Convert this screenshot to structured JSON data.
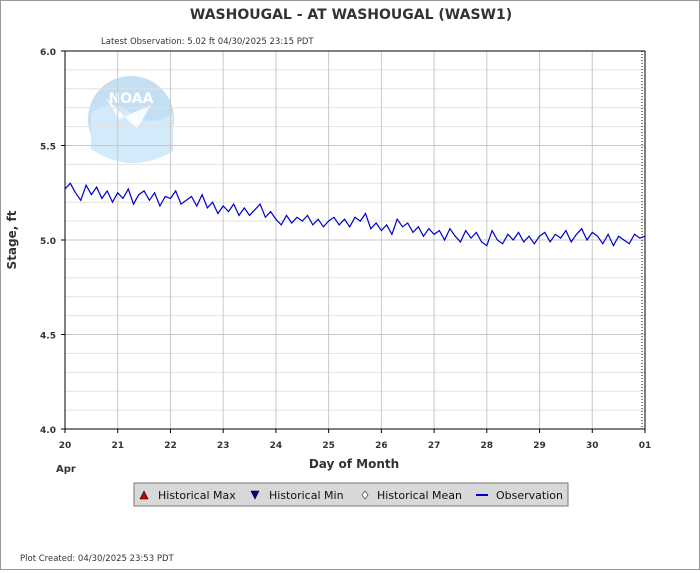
{
  "title": "WASHOUGAL - AT WASHOUGAL  (WASW1)",
  "latest_observation": "Latest Observation: 5.02 ft 04/30/2025 23:15 PDT",
  "plot_created": "Plot Created: 04/30/2025 23:53 PDT",
  "colors": {
    "observation": "#0000cc",
    "hist_max": "#cc0000",
    "hist_min": "#000099",
    "legend_bg": "#d8d8d8",
    "grid_minor": "#e2e2e2",
    "grid_major": "#c8c8c8"
  },
  "legend": [
    {
      "label": "Historical Max",
      "marker": "triangle-up"
    },
    {
      "label": "Historical Min",
      "marker": "triangle-down"
    },
    {
      "label": "Historical Mean",
      "marker": "diamond"
    },
    {
      "label": "Observation",
      "marker": "line"
    }
  ],
  "chart_data": {
    "type": "line",
    "title": "WASHOUGAL - AT WASHOUGAL  (WASW1)",
    "xlabel": "Day of Month",
    "ylabel": "Stage, ft",
    "month_label": "Apr",
    "xlim": [
      20,
      31
    ],
    "ylim": [
      4.0,
      6.0
    ],
    "x_ticks": [
      "20",
      "21",
      "22",
      "23",
      "24",
      "25",
      "26",
      "27",
      "28",
      "29",
      "30",
      "01"
    ],
    "y_ticks": [
      "4.0",
      "4.5",
      "5.0",
      "5.5",
      "6.0"
    ],
    "legend_position": "bottom",
    "grid": true,
    "series": [
      {
        "name": "Observation",
        "x": [
          20.0,
          20.1,
          20.2,
          20.3,
          20.4,
          20.5,
          20.6,
          20.7,
          20.8,
          20.9,
          21.0,
          21.1,
          21.2,
          21.3,
          21.4,
          21.5,
          21.6,
          21.7,
          21.8,
          21.9,
          22.0,
          22.1,
          22.2,
          22.3,
          22.4,
          22.5,
          22.6,
          22.7,
          22.8,
          22.9,
          23.0,
          23.1,
          23.2,
          23.3,
          23.4,
          23.5,
          23.6,
          23.7,
          23.8,
          23.9,
          24.0,
          24.1,
          24.2,
          24.3,
          24.4,
          24.5,
          24.6,
          24.7,
          24.8,
          24.9,
          25.0,
          25.1,
          25.2,
          25.3,
          25.4,
          25.5,
          25.6,
          25.7,
          25.8,
          25.9,
          26.0,
          26.1,
          26.2,
          26.3,
          26.4,
          26.5,
          26.6,
          26.7,
          26.8,
          26.9,
          27.0,
          27.1,
          27.2,
          27.3,
          27.4,
          27.5,
          27.6,
          27.7,
          27.8,
          27.9,
          28.0,
          28.1,
          28.2,
          28.3,
          28.4,
          28.5,
          28.6,
          28.7,
          28.8,
          28.9,
          29.0,
          29.1,
          29.2,
          29.3,
          29.4,
          29.5,
          29.6,
          29.7,
          29.8,
          29.9,
          30.0,
          30.1,
          30.2,
          30.3,
          30.4,
          30.5,
          30.6,
          30.7,
          30.8,
          30.9,
          31.0
        ],
        "y": [
          5.27,
          5.3,
          5.25,
          5.21,
          5.29,
          5.24,
          5.28,
          5.22,
          5.26,
          5.2,
          5.25,
          5.22,
          5.27,
          5.19,
          5.24,
          5.26,
          5.21,
          5.25,
          5.18,
          5.23,
          5.22,
          5.26,
          5.19,
          5.21,
          5.23,
          5.18,
          5.24,
          5.17,
          5.2,
          5.14,
          5.18,
          5.15,
          5.19,
          5.13,
          5.17,
          5.13,
          5.16,
          5.19,
          5.12,
          5.15,
          5.11,
          5.08,
          5.13,
          5.09,
          5.12,
          5.1,
          5.13,
          5.08,
          5.11,
          5.07,
          5.1,
          5.12,
          5.08,
          5.11,
          5.07,
          5.12,
          5.1,
          5.14,
          5.06,
          5.09,
          5.05,
          5.08,
          5.03,
          5.11,
          5.07,
          5.09,
          5.04,
          5.07,
          5.02,
          5.06,
          5.03,
          5.05,
          5.0,
          5.06,
          5.02,
          4.99,
          5.05,
          5.01,
          5.04,
          4.99,
          4.97,
          5.05,
          5.0,
          4.98,
          5.03,
          5.0,
          5.04,
          4.99,
          5.02,
          4.98,
          5.02,
          5.04,
          4.99,
          5.03,
          5.01,
          5.05,
          4.99,
          5.03,
          5.06,
          5.0,
          5.04,
          5.02,
          4.98,
          5.03,
          4.97,
          5.02,
          5.0,
          4.98,
          5.03,
          5.01,
          5.02
        ]
      }
    ]
  }
}
